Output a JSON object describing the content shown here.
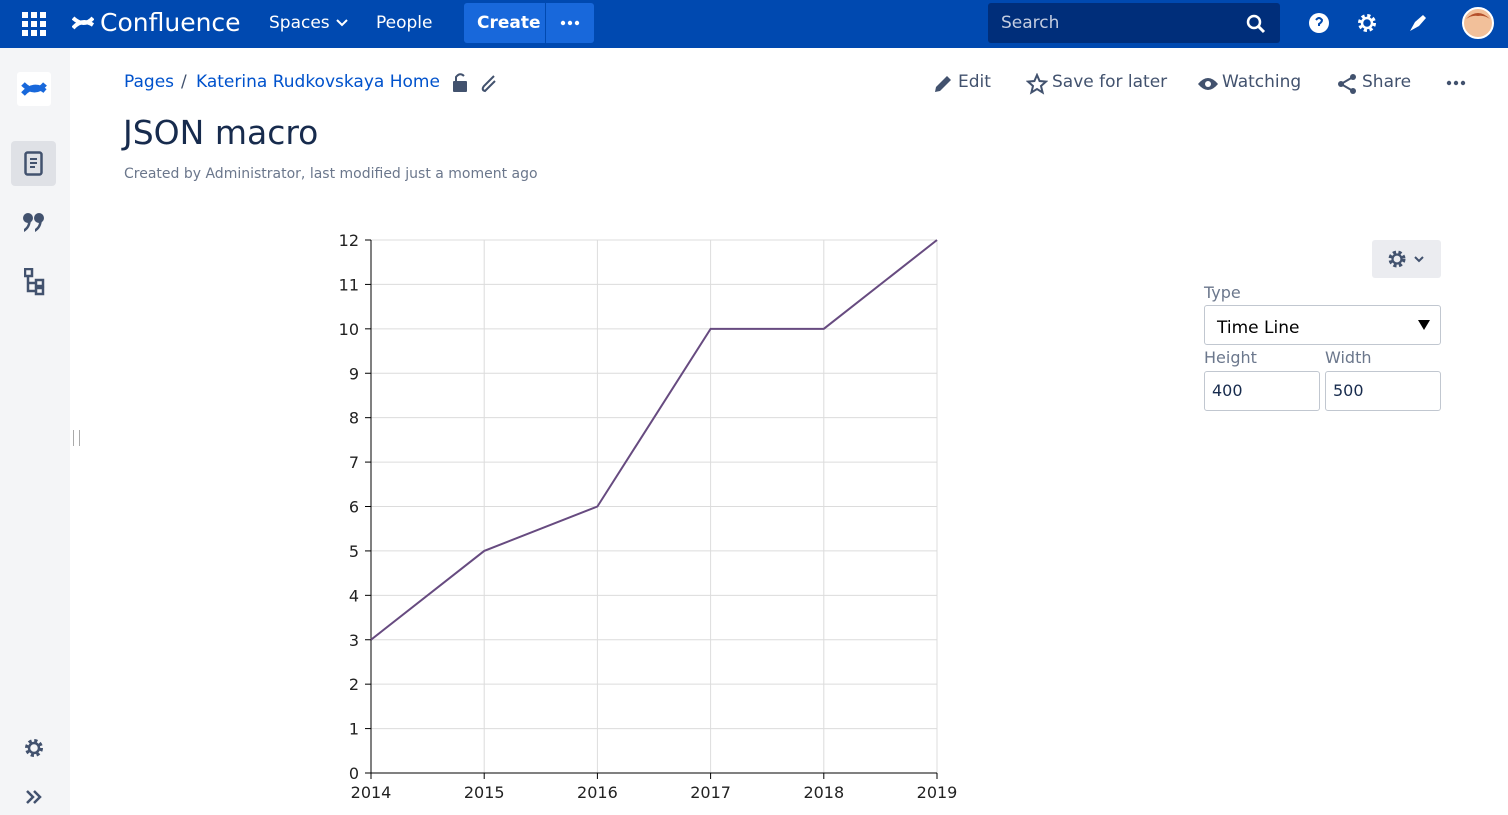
{
  "header": {
    "product": "Confluence",
    "nav": [
      "Spaces",
      "People"
    ],
    "create": "Create",
    "search": "Search"
  },
  "breadcrumb": [
    "Pages",
    "Katerina Rudkovskaya Home"
  ],
  "actions": [
    "Edit",
    "Save for later",
    "Watching",
    "Share"
  ],
  "page": {
    "title": "JSON macro",
    "byline": "Created by Administrator, last modified just a moment ago"
  },
  "chart_data": {
    "type": "line",
    "x": [
      2014,
      2015,
      2016,
      2017,
      2018,
      2019
    ],
    "values": [
      3,
      5,
      6,
      10,
      10,
      12
    ],
    "color": "#674b80",
    "xlim": [
      2014,
      2019
    ],
    "xticks": [
      2014,
      2015,
      2016,
      2017,
      2018,
      2019
    ],
    "ylim": [
      0,
      12
    ],
    "yticks": [
      0,
      1,
      2,
      3,
      4,
      5,
      6,
      7,
      8,
      9,
      10,
      11,
      12
    ],
    "grid": true
  },
  "settings": {
    "type_label": "Type",
    "type_value": "Time Line",
    "height_label": "Height",
    "height_value": "400",
    "width_label": "Width",
    "width_value": "500"
  }
}
